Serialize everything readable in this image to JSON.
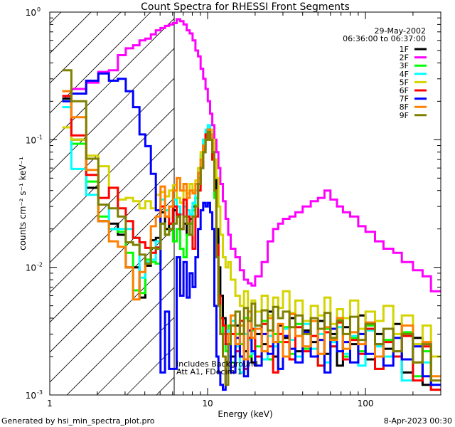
{
  "chart_data": {
    "type": "line",
    "title": "Count Spectra for RHESSI Front Segments",
    "xlabel": "Energy (keV)",
    "ylabel": "counts cm⁻² s⁻¹ keV⁻¹",
    "xscale": "log",
    "yscale": "log",
    "xlim": [
      1,
      300
    ],
    "ylim": [
      0.001,
      1
    ],
    "x_ticks": [
      {
        "value": 1,
        "label": "1"
      },
      {
        "value": 10,
        "label": "10"
      },
      {
        "value": 100,
        "label": "100"
      }
    ],
    "y_ticks": [
      {
        "value": 1,
        "base": "10",
        "exp": "0"
      },
      {
        "value": 0.1,
        "base": "10",
        "exp": "-1"
      },
      {
        "value": 0.01,
        "base": "10",
        "exp": "-2"
      },
      {
        "value": 0.001,
        "base": "10",
        "exp": "-3"
      }
    ],
    "shaded_region": {
      "from": 1,
      "to": 6.2,
      "style": "hatched"
    },
    "legend_position": "top-right",
    "legend_header": [
      "29-May-2002",
      "06:36:00 to 06:37:00"
    ],
    "annotations": [
      "Includes Background",
      "Att A1, FDecim 1"
    ],
    "energy_edges": [
      1.2,
      1.37,
      1.7,
      2.03,
      2.37,
      2.7,
      3.03,
      3.37,
      3.7,
      4.03,
      4.37,
      4.7,
      5.03,
      5.37,
      5.7,
      6.03,
      6.37,
      6.7,
      7.03,
      7.37,
      7.7,
      8.03,
      8.37,
      8.7,
      9.03,
      9.37,
      9.7,
      10.03,
      10.37,
      10.7,
      11.03,
      11.37,
      11.7,
      12.03,
      12.5,
      13,
      13.5,
      14,
      15,
      16,
      17,
      18,
      19,
      20,
      22,
      24,
      26,
      28,
      30,
      33,
      36,
      40,
      45,
      50,
      55,
      60,
      66,
      72,
      80,
      90,
      100,
      115,
      130,
      150,
      170,
      200,
      230,
      260,
      300
    ],
    "series": [
      {
        "name": "1F",
        "color": "#000000",
        "values": [
          0.21,
          0.1,
          0.042,
          0.023,
          0.022,
          0.018,
          0.01,
          0.01,
          0.0058,
          0.0103,
          0.0163,
          0.017,
          0.027,
          0.02,
          0.022,
          0.028,
          0.025,
          0.02,
          0.022,
          0.018,
          0.024,
          0.03,
          0.035,
          0.045,
          0.06,
          0.08,
          0.1,
          0.12,
          0.11,
          0.09,
          0.05,
          0.02,
          0.01,
          0.006,
          0.004,
          0.003,
          0.0025,
          0.002,
          0.0035,
          0.003,
          0.0022,
          0.004,
          0.0018,
          0.003,
          0.0025,
          0.0045,
          0.002,
          0.0035,
          0.0028,
          0.004,
          0.0022,
          0.0032,
          0.0026,
          0.0038,
          0.0021,
          0.003,
          0.0017,
          0.0034,
          0.0025,
          0.0042,
          0.0019,
          0.003,
          0.0023,
          0.0036,
          0.0015,
          0.0028,
          0.0012,
          0.002
        ]
      },
      {
        "name": "2F",
        "color": "#ff00ff",
        "values": [
          0.22,
          0.25,
          0.28,
          0.34,
          0.35,
          0.46,
          0.52,
          0.55,
          0.6,
          0.62,
          0.67,
          0.72,
          0.75,
          0.78,
          0.8,
          0.82,
          0.88,
          0.85,
          0.8,
          0.72,
          0.68,
          0.6,
          0.5,
          0.45,
          0.36,
          0.3,
          0.25,
          0.2,
          0.16,
          0.13,
          0.1,
          0.08,
          0.06,
          0.045,
          0.033,
          0.024,
          0.018,
          0.014,
          0.012,
          0.0095,
          0.008,
          0.0075,
          0.0072,
          0.0085,
          0.011,
          0.016,
          0.02,
          0.022,
          0.024,
          0.025,
          0.027,
          0.03,
          0.033,
          0.035,
          0.04,
          0.034,
          0.03,
          0.027,
          0.025,
          0.021,
          0.019,
          0.016,
          0.014,
          0.013,
          0.011,
          0.0095,
          0.0085,
          0.0065
        ]
      },
      {
        "name": "3F",
        "color": "#00ff00",
        "values": [
          0.2,
          0.093,
          0.047,
          0.025,
          0.02,
          0.019,
          0.013,
          0.0066,
          0.0063,
          0.0115,
          0.011,
          0.0107,
          0.022,
          0.018,
          0.02,
          0.016,
          0.02,
          0.014,
          0.012,
          0.018,
          0.022,
          0.028,
          0.035,
          0.05,
          0.07,
          0.1,
          0.11,
          0.12,
          0.1,
          0.07,
          0.035,
          0.012,
          0.006,
          0.004,
          0.003,
          0.0022,
          0.0035,
          0.0018,
          0.003,
          0.0025,
          0.004,
          0.002,
          0.0032,
          0.0024,
          0.0038,
          0.0019,
          0.003,
          0.0026,
          0.0034,
          0.0021,
          0.0036,
          0.0023,
          0.0029,
          0.0017,
          0.0033,
          0.0024,
          0.0039,
          0.002,
          0.0028,
          0.0022,
          0.0035,
          0.0016,
          0.0027,
          0.002,
          0.0031,
          0.0014,
          0.0022,
          0.0011
        ]
      },
      {
        "name": "4F",
        "color": "#00ffff",
        "values": [
          0.18,
          0.059,
          0.037,
          0.031,
          0.02,
          0.02,
          0.02,
          0.017,
          0.0083,
          0.011,
          0.0115,
          0.016,
          0.034,
          0.028,
          0.03,
          0.034,
          0.03,
          0.026,
          0.03,
          0.028,
          0.026,
          0.032,
          0.04,
          0.055,
          0.075,
          0.1,
          0.12,
          0.13,
          0.12,
          0.08,
          0.04,
          0.015,
          0.005,
          0.003,
          0.0025,
          0.0032,
          0.002,
          0.0038,
          0.0024,
          0.0015,
          0.003,
          0.0027,
          0.0021,
          0.0035,
          0.0019,
          0.0029,
          0.0024,
          0.0016,
          0.0033,
          0.0027,
          0.002,
          0.0036,
          0.0023,
          0.003,
          0.0018,
          0.0026,
          0.0034,
          0.0021,
          0.0029,
          0.0017,
          0.0032,
          0.0024,
          0.002,
          0.0028,
          0.0013,
          0.0025,
          0.0018,
          0.0012
        ]
      },
      {
        "name": "5F",
        "color": "#d4d400",
        "values": [
          0.125,
          0.1,
          0.075,
          0.062,
          0.042,
          0.034,
          0.035,
          0.033,
          0.029,
          0.033,
          0.029,
          0.037,
          0.039,
          0.036,
          0.04,
          0.044,
          0.035,
          0.032,
          0.04,
          0.038,
          0.045,
          0.04,
          0.048,
          0.06,
          0.08,
          0.09,
          0.1,
          0.11,
          0.12,
          0.1,
          0.07,
          0.05,
          0.03,
          0.018,
          0.012,
          0.01,
          0.011,
          0.008,
          0.006,
          0.005,
          0.0065,
          0.004,
          0.0055,
          0.0045,
          0.006,
          0.0042,
          0.0058,
          0.0048,
          0.0065,
          0.0044,
          0.0055,
          0.0038,
          0.005,
          0.0042,
          0.0058,
          0.0036,
          0.0047,
          0.004,
          0.0055,
          0.0033,
          0.0045,
          0.0038,
          0.005,
          0.003,
          0.0042,
          0.0025,
          0.0035,
          0.002
        ]
      },
      {
        "name": "6F",
        "color": "#ff0000",
        "values": [
          0.22,
          0.108,
          0.053,
          0.035,
          0.042,
          0.029,
          0.023,
          0.017,
          0.0157,
          0.0142,
          0.013,
          0.0143,
          0.03,
          0.025,
          0.022,
          0.03,
          0.026,
          0.02,
          0.034,
          0.025,
          0.018,
          0.014,
          0.025,
          0.04,
          0.06,
          0.09,
          0.11,
          0.12,
          0.1,
          0.07,
          0.04,
          0.015,
          0.006,
          0.004,
          0.0035,
          0.0025,
          0.0018,
          0.003,
          0.0022,
          0.0038,
          0.0016,
          0.0028,
          0.0033,
          0.002,
          0.0036,
          0.0024,
          0.0015,
          0.003,
          0.0026,
          0.0019,
          0.0034,
          0.0022,
          0.0029,
          0.0017,
          0.0031,
          0.0024,
          0.0037,
          0.0019,
          0.0027,
          0.0021,
          0.0033,
          0.0016,
          0.0026,
          0.002,
          0.0029,
          0.0013,
          0.0024,
          0.0011
        ]
      },
      {
        "name": "7F",
        "color": "#0000ff",
        "values": [
          0.2,
          0.23,
          0.29,
          0.33,
          0.29,
          0.3,
          0.24,
          0.18,
          0.11,
          0.089,
          0.054,
          0.028,
          0.0015,
          0.0045,
          0.0016,
          0.0016,
          0.012,
          0.006,
          0.011,
          0.0058,
          0.009,
          0.007,
          0.012,
          0.02,
          0.028,
          0.032,
          0.03,
          0.032,
          0.027,
          0.02,
          0.005,
          0.002,
          0.0015,
          0.0012,
          0.0011,
          0.0018,
          0.0025,
          0.0015,
          0.0028,
          0.002,
          0.0014,
          0.0032,
          0.0022,
          0.0017,
          0.003,
          0.0021,
          0.0026,
          0.0016,
          0.0029,
          0.0023,
          0.0018,
          0.0031,
          0.002,
          0.0027,
          0.0015,
          0.0033,
          0.0022,
          0.0026,
          0.0018,
          0.003,
          0.0021,
          0.0025,
          0.0017,
          0.0028,
          0.0019,
          0.0024,
          0.0014,
          0.0012
        ]
      },
      {
        "name": "8F",
        "color": "#ff8000",
        "values": [
          0.24,
          0.15,
          0.058,
          0.023,
          0.016,
          0.0145,
          0.01,
          0.0056,
          0.0092,
          0.0107,
          0.021,
          0.025,
          0.043,
          0.025,
          0.03,
          0.04,
          0.05,
          0.04,
          0.045,
          0.035,
          0.04,
          0.038,
          0.045,
          0.055,
          0.07,
          0.09,
          0.1,
          0.12,
          0.11,
          0.08,
          0.04,
          0.012,
          0.005,
          0.003,
          0.002,
          0.0015,
          0.003,
          0.0042,
          0.0025,
          0.0035,
          0.0019,
          0.0045,
          0.0028,
          0.0033,
          0.0022,
          0.004,
          0.0026,
          0.0036,
          0.002,
          0.0043,
          0.0029,
          0.0024,
          0.0038,
          0.0021,
          0.0034,
          0.0027,
          0.004,
          0.0023,
          0.0031,
          0.0025,
          0.0037,
          0.002,
          0.0033,
          0.0022,
          0.0035,
          0.0018,
          0.0026,
          0.0014
        ]
      },
      {
        "name": "9F",
        "color": "#808000",
        "values": [
          0.35,
          0.2,
          0.071,
          0.031,
          0.029,
          0.025,
          0.0157,
          0.015,
          0.0126,
          0.0107,
          0.0142,
          0.014,
          0.022,
          0.018,
          0.02,
          0.022,
          0.025,
          0.02,
          0.025,
          0.022,
          0.018,
          0.025,
          0.03,
          0.045,
          0.06,
          0.08,
          0.1,
          0.115,
          0.1,
          0.08,
          0.04,
          0.012,
          0.005,
          0.003,
          0.002,
          0.0012,
          0.0025,
          0.0035,
          0.0045,
          0.003,
          0.0048,
          0.0038,
          0.0052,
          0.0035,
          0.0046,
          0.0032,
          0.0049,
          0.004,
          0.0045,
          0.0034,
          0.0042,
          0.003,
          0.004,
          0.0033,
          0.0044,
          0.0028,
          0.0038,
          0.003,
          0.0041,
          0.0027,
          0.0036,
          0.0025,
          0.0033,
          0.0022,
          0.003,
          0.0018,
          0.0025,
          0.0013
        ]
      }
    ]
  },
  "footer": {
    "generated_by": "Generated by hsi_min_spectra_plot.pro",
    "timestamp": "8-Apr-2023 00:30"
  }
}
